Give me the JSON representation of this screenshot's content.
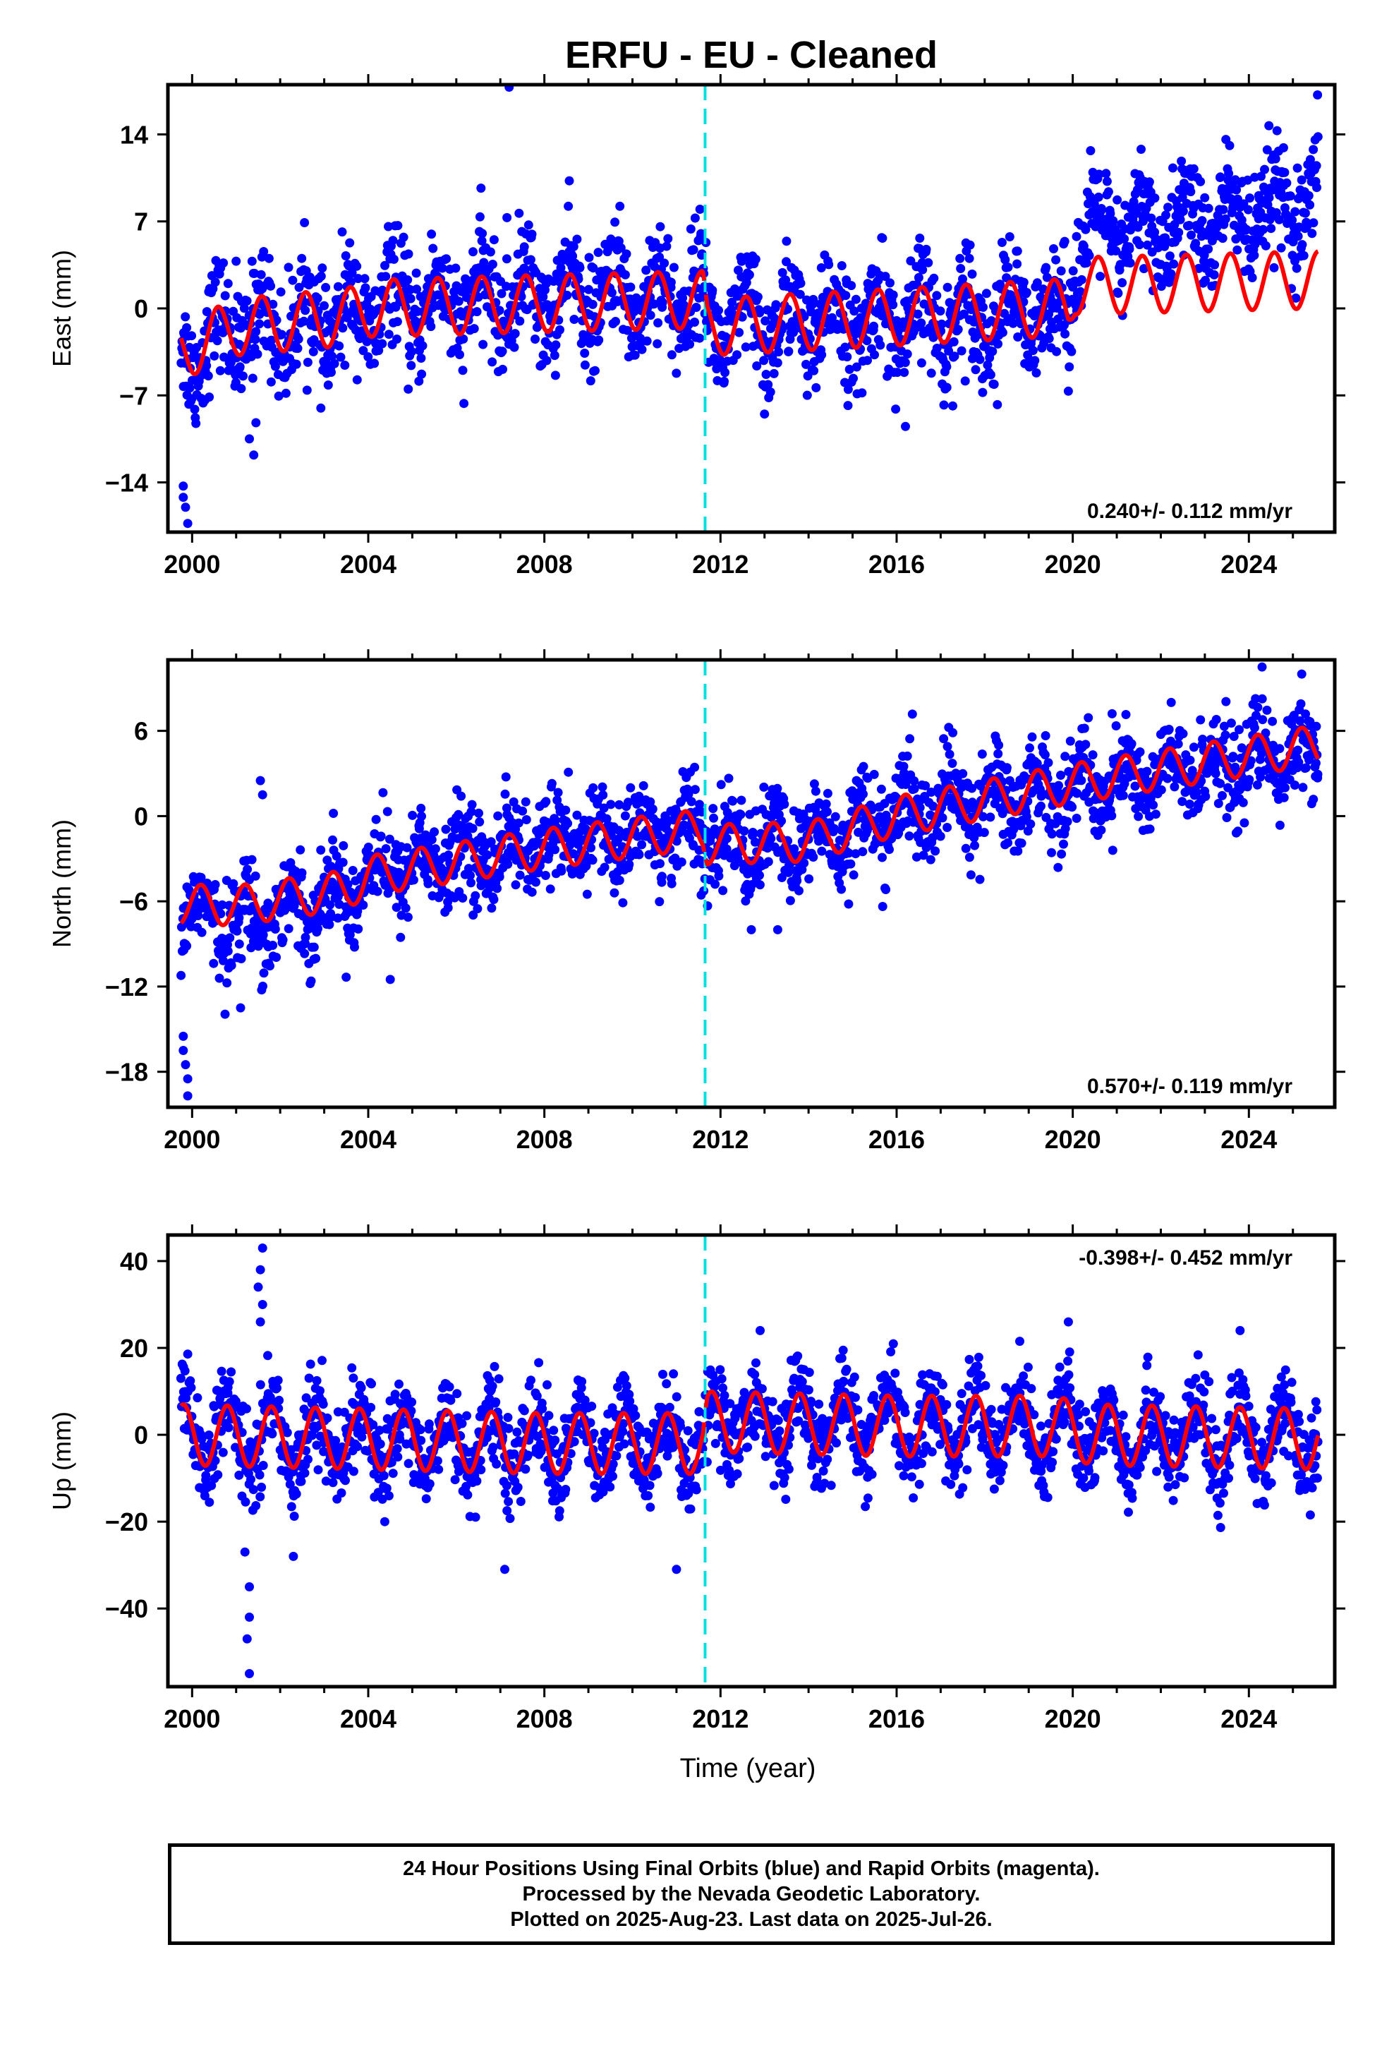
{
  "title": "ERFU  - EU - Cleaned",
  "colors": {
    "data": "#0000ff",
    "model": "#ff0000",
    "event": "#00e0e0",
    "frame": "#000000"
  },
  "chart_data": [
    {
      "type": "scatter",
      "component": "east",
      "ylabel": "East (mm)",
      "xlim": [
        1999.45,
        2025.95
      ],
      "ylim": [
        -18,
        18
      ],
      "yticks": [
        -14,
        -7,
        0,
        7,
        14
      ],
      "yticklabels": [
        "−14",
        "−7",
        "0",
        "7",
        "14"
      ],
      "xticks": [
        2000,
        2004,
        2008,
        2012,
        2016,
        2020,
        2024
      ],
      "xticklabels": [
        "2000",
        "2004",
        "2008",
        "2012",
        "2016",
        "2020",
        "2024"
      ],
      "rate_label": "0.240+/- 0.112 mm/yr",
      "rate_position": "bottom-right",
      "event_year": 2011.65,
      "data_start": 1999.75,
      "data_end": 2025.57,
      "series": [
        {
          "kind": "daily_positions",
          "trend": [
            [
              1999.75,
              -3.2
            ],
            [
              2000.2,
              -3.0
            ],
            [
              2001,
              -1.5
            ],
            [
              2003.5,
              -1.0
            ],
            [
              2004,
              0.0
            ],
            [
              2008,
              1.0
            ],
            [
              2011.6,
              1.2
            ],
            [
              2011.7,
              -1.5
            ],
            [
              2016,
              -1.0
            ],
            [
              2019.9,
              -0.5
            ],
            [
              2020.05,
              5.5
            ],
            [
              2022,
              6.5
            ],
            [
              2025.57,
              8.0
            ]
          ],
          "noise": 2.2,
          "outliers": [
            [
              1999.8,
              -14.3
            ],
            [
              1999.8,
              -15.2
            ],
            [
              1999.85,
              -16.0
            ],
            [
              1999.9,
              -17.3
            ],
            [
              2007.2,
              17.8
            ],
            [
              2007.15,
              7.3
            ],
            [
              2001.4,
              -11.8
            ],
            [
              2001.3,
              -10.5
            ],
            [
              2001.45,
              -9.2
            ],
            [
              2001.0,
              3.8
            ],
            [
              2016.2,
              -9.5
            ],
            [
              2013.0,
              -8.5
            ]
          ]
        },
        {
          "kind": "model",
          "trend": [
            [
              1999.75,
              -3.5
            ],
            [
              2001,
              -1.5
            ],
            [
              2003.5,
              -0.7
            ],
            [
              2004,
              0.0
            ],
            [
              2008,
              0.4
            ],
            [
              2011.6,
              0.7
            ],
            [
              2011.7,
              -1.5
            ],
            [
              2016,
              -0.7
            ],
            [
              2019.9,
              0.1
            ],
            [
              2020.05,
              1.8
            ],
            [
              2025.57,
              2.3
            ]
          ],
          "amplitude": 2.3,
          "phase": 0.33
        }
      ]
    },
    {
      "type": "scatter",
      "component": "north",
      "ylabel": "North (mm)",
      "xlim": [
        1999.45,
        2025.95
      ],
      "ylim": [
        -20.5,
        11
      ],
      "yticks": [
        -18,
        -12,
        -6,
        0,
        6
      ],
      "yticklabels": [
        "−18",
        "−12",
        "−6",
        "0",
        "6"
      ],
      "xticks": [
        2000,
        2004,
        2008,
        2012,
        2016,
        2020,
        2024
      ],
      "xticklabels": [
        "2000",
        "2004",
        "2008",
        "2012",
        "2016",
        "2020",
        "2024"
      ],
      "rate_label": "0.570+/- 0.119 mm/yr",
      "rate_position": "bottom-right",
      "event_year": 2011.65,
      "data_start": 1999.75,
      "data_end": 2025.57,
      "series": [
        {
          "kind": "daily_positions",
          "trend": [
            [
              1999.75,
              -6.5
            ],
            [
              2001,
              -7.5
            ],
            [
              2003.5,
              -5.5
            ],
            [
              2004,
              -3.8
            ],
            [
              2008,
              -2.0
            ],
            [
              2011.6,
              -0.8
            ],
            [
              2011.7,
              -2.2
            ],
            [
              2014,
              -1.8
            ],
            [
              2016,
              0.2
            ],
            [
              2020,
              2.0
            ],
            [
              2025.57,
              4.5
            ]
          ],
          "noise": 1.6,
          "outliers": [
            [
              1999.8,
              -15.5
            ],
            [
              1999.8,
              -16.5
            ],
            [
              1999.85,
              -17.5
            ],
            [
              1999.9,
              -18.5
            ],
            [
              1999.9,
              -19.7
            ],
            [
              2001.55,
              2.5
            ],
            [
              2001.6,
              1.5
            ],
            [
              2001.1,
              -13.5
            ],
            [
              2004.5,
              -11.5
            ],
            [
              2012.7,
              -8.0
            ],
            [
              2013.3,
              -8.0
            ],
            [
              2024.3,
              10.5
            ],
            [
              2025.2,
              10.0
            ]
          ]
        },
        {
          "kind": "model",
          "trend": [
            [
              1999.75,
              -6.2
            ],
            [
              2001,
              -6.3
            ],
            [
              2003.5,
              -5.2
            ],
            [
              2004,
              -4.2
            ],
            [
              2008,
              -2.3
            ],
            [
              2011.6,
              -0.9
            ],
            [
              2011.7,
              -2.0
            ],
            [
              2014,
              -1.8
            ],
            [
              2016,
              0.0
            ],
            [
              2020,
              2.3
            ],
            [
              2025.57,
              5.0
            ]
          ],
          "amplitude": 1.4,
          "phase": 0.95
        }
      ]
    },
    {
      "type": "scatter",
      "component": "up",
      "ylabel": "Up (mm)",
      "xlim": [
        1999.45,
        2025.95
      ],
      "ylim": [
        -58,
        46
      ],
      "yticks": [
        -40,
        -20,
        0,
        20,
        40
      ],
      "yticklabels": [
        "−40",
        "−20",
        "0",
        "20",
        "40"
      ],
      "xticks": [
        2000,
        2004,
        2008,
        2012,
        2016,
        2020,
        2024
      ],
      "xticklabels": [
        "2000",
        "2004",
        "2008",
        "2012",
        "2016",
        "2020",
        "2024"
      ],
      "xlabel": "Time (year)",
      "rate_label": "-0.398+/- 0.452 mm/yr",
      "rate_position": "top-right",
      "event_year": 2011.65,
      "data_start": 1999.75,
      "data_end": 2025.57,
      "series": [
        {
          "kind": "daily_positions",
          "trend": [
            [
              1999.75,
              0.0
            ],
            [
              2004,
              -1.0
            ],
            [
              2008,
              -2.0
            ],
            [
              2011.6,
              -2.0
            ],
            [
              2011.7,
              3.0
            ],
            [
              2016,
              2.0
            ],
            [
              2019.5,
              2.0
            ],
            [
              2020.5,
              0.0
            ],
            [
              2025.57,
              -1.5
            ]
          ],
          "noise": 5.0,
          "outliers": [
            [
              2001.6,
              43
            ],
            [
              2001.55,
              38
            ],
            [
              2001.5,
              34
            ],
            [
              2001.6,
              30
            ],
            [
              2001.55,
              26
            ],
            [
              2001.3,
              -35
            ],
            [
              2001.3,
              -42
            ],
            [
              2001.25,
              -47
            ],
            [
              2001.3,
              -55
            ],
            [
              2001.2,
              -27
            ],
            [
              2007.1,
              -31
            ],
            [
              2011.0,
              -31
            ],
            [
              2019.9,
              26
            ],
            [
              2012.9,
              24
            ],
            [
              2023.8,
              24
            ],
            [
              2002.3,
              -28
            ]
          ]
        },
        {
          "kind": "model",
          "trend": [
            [
              1999.75,
              0.0
            ],
            [
              2004,
              -1.0
            ],
            [
              2008,
              -2.0
            ],
            [
              2011.6,
              -2.0
            ],
            [
              2011.7,
              3.0
            ],
            [
              2016,
              2.0
            ],
            [
              2019.5,
              2.0
            ],
            [
              2020.5,
              0.0
            ],
            [
              2025.57,
              -1.0
            ]
          ],
          "amplitude": 7.0,
          "phase": 0.55
        }
      ]
    }
  ],
  "footer": {
    "line1": "24 Hour Positions Using Final Orbits (blue) and Rapid Orbits (magenta).",
    "line2": "Processed by the Nevada Geodetic Laboratory.",
    "line3": "Plotted on 2025-Aug-23. Last data on 2025-Jul-26."
  }
}
